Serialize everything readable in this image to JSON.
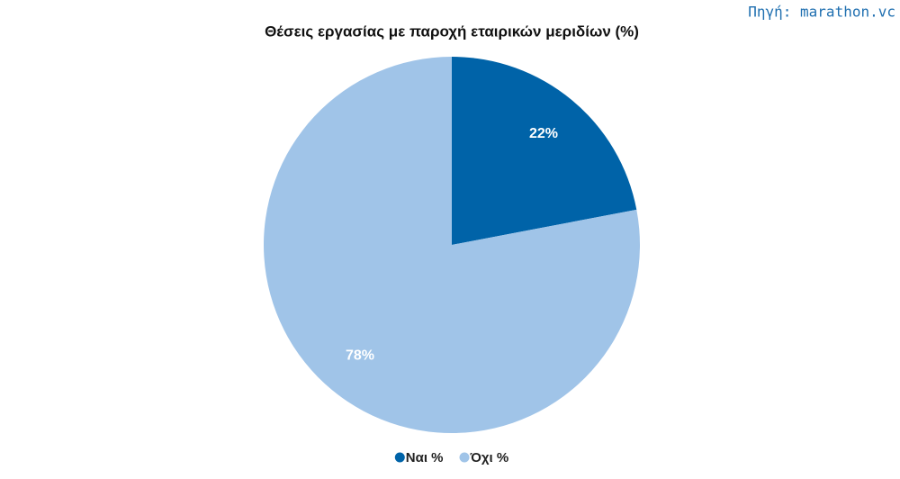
{
  "chart_data": {
    "type": "pie",
    "title": "Θέσεις εργασίας με παροχή εταιρικών μεριδίων (%)",
    "source": "Πηγή: marathon.vc",
    "categories": [
      "Ναι %",
      "Όχι %"
    ],
    "values": [
      22,
      78
    ],
    "value_labels": [
      "22%",
      "78%"
    ],
    "colors": [
      "#0063a8",
      "#a0c4e8"
    ]
  }
}
